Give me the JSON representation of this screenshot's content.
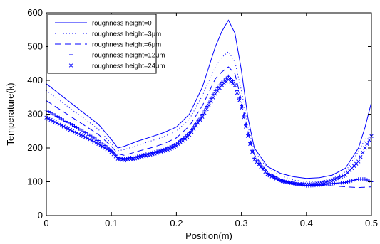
{
  "chart_data": {
    "type": "line",
    "title": "",
    "xlabel": "Position(m)",
    "ylabel": "Temperature(k)",
    "xlim": [
      0,
      0.5
    ],
    "ylim": [
      0,
      600
    ],
    "xticks": [
      "0",
      "0.1",
      "0.2",
      "0.3",
      "0.4",
      "0.5"
    ],
    "yticks": [
      "0",
      "100",
      "200",
      "300",
      "400",
      "500",
      "600"
    ],
    "grid": false,
    "legend_position": "top-left",
    "color": "#0000ff",
    "series": [
      {
        "name": "roughness height=0",
        "style": "solid",
        "x": [
          0,
          0.02,
          0.04,
          0.06,
          0.08,
          0.1,
          0.11,
          0.12,
          0.14,
          0.16,
          0.18,
          0.2,
          0.22,
          0.24,
          0.26,
          0.27,
          0.28,
          0.29,
          0.3,
          0.31,
          0.32,
          0.34,
          0.36,
          0.38,
          0.4,
          0.42,
          0.44,
          0.46,
          0.48,
          0.49,
          0.5
        ],
        "y": [
          390,
          360,
          330,
          300,
          270,
          225,
          200,
          205,
          220,
          232,
          245,
          262,
          300,
          380,
          500,
          545,
          578,
          540,
          430,
          290,
          200,
          145,
          125,
          115,
          110,
          112,
          120,
          140,
          200,
          260,
          335
        ]
      },
      {
        "name": "roughness height=3μm",
        "style": "dotted",
        "x": [
          0,
          0.02,
          0.04,
          0.06,
          0.08,
          0.1,
          0.11,
          0.12,
          0.14,
          0.16,
          0.18,
          0.2,
          0.22,
          0.24,
          0.26,
          0.27,
          0.28,
          0.29,
          0.3,
          0.31,
          0.32,
          0.34,
          0.36,
          0.38,
          0.4,
          0.42,
          0.44,
          0.46,
          0.48,
          0.49,
          0.5
        ],
        "y": [
          370,
          342,
          312,
          285,
          255,
          213,
          192,
          195,
          208,
          220,
          233,
          250,
          285,
          355,
          440,
          468,
          485,
          455,
          370,
          265,
          190,
          140,
          118,
          105,
          100,
          101,
          108,
          130,
          190,
          225,
          240
        ]
      },
      {
        "name": "roughness height=6μm",
        "style": "dashed",
        "x": [
          0,
          0.02,
          0.04,
          0.06,
          0.08,
          0.1,
          0.11,
          0.12,
          0.14,
          0.16,
          0.18,
          0.2,
          0.22,
          0.24,
          0.26,
          0.27,
          0.28,
          0.29,
          0.3,
          0.31,
          0.32,
          0.34,
          0.36,
          0.38,
          0.4,
          0.42,
          0.44,
          0.46,
          0.48,
          0.5
        ],
        "y": [
          340,
          315,
          290,
          265,
          240,
          205,
          183,
          178,
          190,
          200,
          212,
          230,
          265,
          325,
          405,
          425,
          440,
          420,
          340,
          250,
          180,
          130,
          108,
          95,
          90,
          90,
          88,
          85,
          83,
          85
        ]
      },
      {
        "name": "roughness height=12μm",
        "style": "plus",
        "x": [
          0,
          0.02,
          0.04,
          0.06,
          0.08,
          0.1,
          0.11,
          0.12,
          0.14,
          0.16,
          0.18,
          0.2,
          0.22,
          0.24,
          0.26,
          0.27,
          0.28,
          0.29,
          0.3,
          0.31,
          0.32,
          0.34,
          0.36,
          0.38,
          0.4,
          0.42,
          0.44,
          0.46,
          0.48,
          0.49,
          0.5
        ],
        "y": [
          312,
          290,
          268,
          245,
          222,
          193,
          172,
          168,
          175,
          185,
          195,
          212,
          245,
          300,
          370,
          395,
          412,
          392,
          325,
          240,
          170,
          125,
          104,
          95,
          88,
          90,
          95,
          98,
          108,
          108,
          100
        ]
      },
      {
        "name": "roughness height=24μm",
        "style": "cross",
        "x": [
          0,
          0.02,
          0.04,
          0.06,
          0.08,
          0.1,
          0.11,
          0.12,
          0.14,
          0.16,
          0.18,
          0.2,
          0.22,
          0.24,
          0.26,
          0.27,
          0.28,
          0.29,
          0.3,
          0.31,
          0.32,
          0.34,
          0.36,
          0.38,
          0.4,
          0.42,
          0.44,
          0.46,
          0.48,
          0.49,
          0.5
        ],
        "y": [
          290,
          270,
          250,
          232,
          212,
          188,
          168,
          163,
          170,
          180,
          190,
          205,
          238,
          292,
          360,
          386,
          402,
          385,
          318,
          235,
          165,
          122,
          103,
          95,
          92,
          95,
          105,
          120,
          160,
          200,
          235
        ]
      }
    ]
  }
}
